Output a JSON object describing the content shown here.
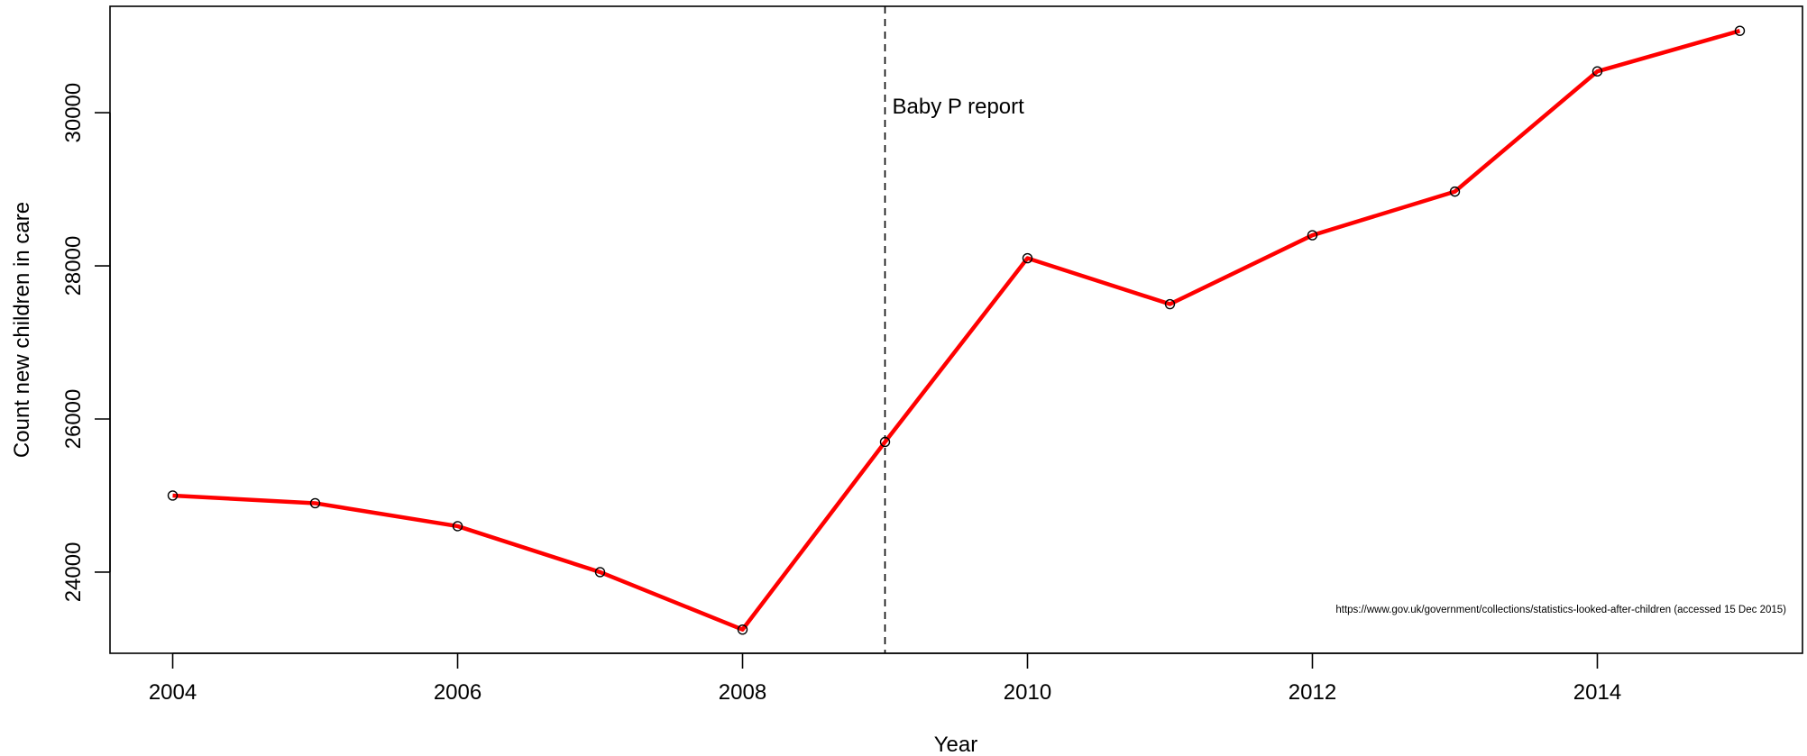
{
  "chart_data": {
    "type": "line",
    "title": "",
    "xlabel": "Year",
    "ylabel": "Count new children in care",
    "xlim": [
      2003.56,
      2015.44
    ],
    "ylim": [
      22940,
      31390
    ],
    "x_ticks": [
      2004,
      2006,
      2008,
      2010,
      2012,
      2014
    ],
    "y_ticks": [
      24000,
      26000,
      28000,
      30000
    ],
    "grid": false,
    "legend": "none",
    "series": [
      {
        "color": "#ff0000",
        "x": [
          2004,
          2005,
          2006,
          2007,
          2008,
          2009,
          2010,
          2011,
          2012,
          2013,
          2014,
          2015
        ],
        "values": [
          25000,
          24900,
          24600,
          24000,
          23250,
          25700,
          28100,
          27500,
          28400,
          28970,
          30540,
          31070
        ]
      }
    ],
    "annotations": [
      {
        "type": "vline",
        "x": 2009,
        "style": "dashed",
        "color": "#000000",
        "label": "Baby P report",
        "label_y": 30000
      }
    ],
    "caption": "https://www.gov.uk/government/collections/statistics-looked-after-children (accessed 15 Dec 2015)"
  }
}
